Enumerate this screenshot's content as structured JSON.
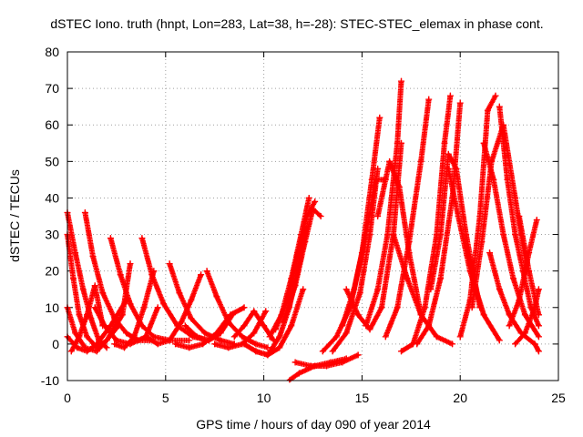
{
  "chart_data": {
    "type": "scatter",
    "title": "dSTEC Iono. truth (hnpt, Lon=283, Lat=38, h=-28): STEC-STEC_elemax in phase cont.",
    "xlabel": "GPS time / hours of day 090 of year 2014",
    "ylabel": "dSTEC  / TECUs",
    "xlim": [
      0,
      25
    ],
    "ylim": [
      -10,
      80
    ],
    "x_ticks": [
      "0",
      "5",
      "10",
      "15",
      "20",
      "25"
    ],
    "y_ticks": [
      "-10",
      "0",
      "10",
      "20",
      "30",
      "40",
      "50",
      "60",
      "70",
      "80"
    ],
    "grid": true,
    "marker": "+",
    "color": "#ff0000",
    "series": [
      {
        "x": [
          0.0,
          0.4,
          0.8,
          1.2,
          1.6,
          2.0
        ],
        "y": [
          36,
          25,
          15,
          7,
          1,
          -1
        ]
      },
      {
        "x": [
          0.0,
          0.3,
          0.6,
          1.0,
          1.5,
          2.0,
          2.6
        ],
        "y": [
          30,
          18,
          8,
          2,
          -1,
          1,
          5
        ]
      },
      {
        "x": [
          0.0,
          0.4,
          0.9,
          1.5,
          2.0,
          2.8,
          3.2
        ],
        "y": [
          10,
          3,
          -1,
          -2,
          1,
          8,
          22
        ]
      },
      {
        "x": [
          0.0,
          0.5,
          1.0,
          1.5,
          2.2,
          3.0
        ],
        "y": [
          2,
          -1,
          -2,
          0,
          5,
          12
        ]
      },
      {
        "x": [
          0.2,
          0.6,
          1.0,
          1.4,
          1.8
        ],
        "y": [
          -2,
          2,
          8,
          16,
          5
        ]
      },
      {
        "x": [
          0.9,
          1.3,
          1.8,
          2.4,
          3.0,
          3.6,
          4.2
        ],
        "y": [
          36,
          24,
          14,
          7,
          3,
          1,
          1
        ]
      },
      {
        "x": [
          1.4,
          1.9,
          2.5,
          3.2,
          4.0,
          4.6
        ],
        "y": [
          10,
          5,
          1,
          0,
          2,
          10
        ]
      },
      {
        "x": [
          2.2,
          2.7,
          3.2,
          3.8,
          4.4,
          5.2,
          6.2
        ],
        "y": [
          29,
          19,
          11,
          5,
          2,
          1,
          1
        ]
      },
      {
        "x": [
          2.4,
          2.9,
          3.4,
          3.9,
          4.4
        ],
        "y": [
          0,
          -1,
          2,
          10,
          20
        ]
      },
      {
        "x": [
          3.8,
          4.3,
          4.9,
          5.6,
          6.4,
          7.2
        ],
        "y": [
          29,
          19,
          11,
          5,
          2,
          1
        ]
      },
      {
        "x": [
          4.0,
          4.6,
          5.2,
          5.8,
          6.3,
          6.8
        ],
        "y": [
          2,
          0,
          1,
          6,
          12,
          19
        ]
      },
      {
        "x": [
          5.2,
          5.7,
          6.3,
          7.0,
          7.8,
          8.5
        ],
        "y": [
          22,
          14,
          7,
          3,
          1,
          0
        ]
      },
      {
        "x": [
          5.5,
          6.2,
          6.9,
          7.6,
          8.3,
          9.0
        ],
        "y": [
          0,
          -1,
          0,
          3,
          8,
          10
        ]
      },
      {
        "x": [
          6.0,
          6.6,
          7.2,
          7.8,
          8.4
        ],
        "y": [
          5,
          2,
          1,
          3,
          8
        ]
      },
      {
        "x": [
          7.1,
          7.6,
          8.2,
          8.9,
          9.6,
          10.2
        ],
        "y": [
          20,
          13,
          6,
          2,
          0,
          -1
        ]
      },
      {
        "x": [
          7.5,
          8.2,
          8.9,
          9.5,
          10.1
        ],
        "y": [
          0,
          -1,
          0,
          3,
          9
        ]
      },
      {
        "x": [
          8.5,
          9.0,
          9.5,
          10.0,
          10.5
        ],
        "y": [
          2,
          5,
          9,
          5,
          1
        ]
      },
      {
        "x": [
          9.0,
          9.6,
          10.2,
          10.8,
          11.4,
          12.0
        ],
        "y": [
          0,
          -2,
          -3,
          -1,
          5,
          15
        ]
      },
      {
        "x": [
          9.6,
          10.2,
          10.8,
          11.3,
          11.8,
          12.2
        ],
        "y": [
          -2,
          -3,
          2,
          10,
          22,
          32
        ]
      },
      {
        "x": [
          10.3,
          10.9,
          11.4,
          11.9,
          12.3
        ],
        "y": [
          2,
          8,
          18,
          30,
          40
        ]
      },
      {
        "x": [
          10.6,
          11.2,
          11.7,
          12.2,
          12.6
        ],
        "y": [
          4,
          12,
          24,
          35,
          39
        ]
      },
      {
        "x": [
          11.0,
          11.6,
          12.1,
          12.5,
          12.9
        ],
        "y": [
          6,
          16,
          28,
          37,
          35
        ]
      },
      {
        "x": [
          11.0,
          11.8,
          12.6,
          13.4,
          14.2
        ],
        "y": [
          -11,
          -8,
          -6,
          -5,
          -4
        ]
      },
      {
        "x": [
          11.6,
          12.4,
          13.2,
          14.0,
          14.8
        ],
        "y": [
          -5,
          -6,
          -6,
          -5,
          -3
        ]
      },
      {
        "x": [
          13.0,
          13.7,
          14.4,
          15.0,
          15.5,
          15.9
        ],
        "y": [
          -2,
          2,
          10,
          25,
          45,
          62
        ]
      },
      {
        "x": [
          13.5,
          14.2,
          14.9,
          15.4,
          15.8
        ],
        "y": [
          -2,
          3,
          14,
          30,
          48
        ]
      },
      {
        "x": [
          14.0,
          14.6,
          15.2,
          15.7,
          16.2
        ],
        "y": [
          5,
          15,
          30,
          45,
          45
        ]
      },
      {
        "x": [
          14.2,
          14.8,
          15.4,
          16.0,
          16.6,
          17.0
        ],
        "y": [
          15,
          8,
          4,
          10,
          30,
          55
        ]
      },
      {
        "x": [
          15.2,
          15.8,
          16.3,
          16.8,
          17.0
        ],
        "y": [
          5,
          15,
          30,
          55,
          72
        ]
      },
      {
        "x": [
          15.8,
          16.4,
          16.9,
          17.4,
          18.0
        ],
        "y": [
          35,
          50,
          43,
          25,
          8
        ]
      },
      {
        "x": [
          16.2,
          16.8,
          17.4,
          18.0,
          18.4
        ],
        "y": [
          2,
          10,
          28,
          50,
          67
        ]
      },
      {
        "x": [
          16.6,
          17.3,
          18.0,
          18.8,
          19.6
        ],
        "y": [
          30,
          18,
          8,
          2,
          0
        ]
      },
      {
        "x": [
          17.0,
          17.6,
          18.2,
          18.8,
          19.2,
          19.5
        ],
        "y": [
          -2,
          0,
          10,
          30,
          55,
          68
        ]
      },
      {
        "x": [
          17.8,
          18.4,
          19.0,
          19.6,
          20.0
        ],
        "y": [
          0,
          5,
          18,
          40,
          66
        ]
      },
      {
        "x": [
          18.5,
          19.0,
          19.4,
          19.8,
          20.3,
          21.0
        ],
        "y": [
          15,
          30,
          52,
          48,
          30,
          10
        ]
      },
      {
        "x": [
          19.4,
          19.9,
          20.5,
          21.2,
          22.0
        ],
        "y": [
          48,
          35,
          20,
          8,
          1
        ]
      },
      {
        "x": [
          20.0,
          20.5,
          21.0,
          21.4,
          21.8
        ],
        "y": [
          2,
          12,
          35,
          64,
          68
        ]
      },
      {
        "x": [
          20.6,
          21.1,
          21.6,
          22.2,
          22.8,
          23.4
        ],
        "y": [
          10,
          28,
          50,
          60,
          40,
          20
        ]
      },
      {
        "x": [
          21.2,
          21.7,
          22.2,
          22.7,
          23.3,
          24.0
        ],
        "y": [
          55,
          45,
          30,
          18,
          8,
          2
        ]
      },
      {
        "x": [
          21.5,
          22.0,
          22.5,
          23.1,
          23.8,
          24.0
        ],
        "y": [
          25,
          15,
          8,
          3,
          0,
          -2
        ]
      },
      {
        "x": [
          22.0,
          22.4,
          22.8,
          23.2,
          23.6,
          24.0
        ],
        "y": [
          65,
          45,
          30,
          20,
          10,
          5
        ]
      },
      {
        "x": [
          22.5,
          23.0,
          23.5,
          23.9
        ],
        "y": [
          5,
          12,
          25,
          34
        ]
      },
      {
        "x": [
          22.8,
          23.3,
          23.8,
          24.0
        ],
        "y": [
          0,
          3,
          10,
          15
        ]
      },
      {
        "x": [
          23.0,
          23.5,
          24.0
        ],
        "y": [
          35,
          20,
          8
        ]
      }
    ]
  }
}
